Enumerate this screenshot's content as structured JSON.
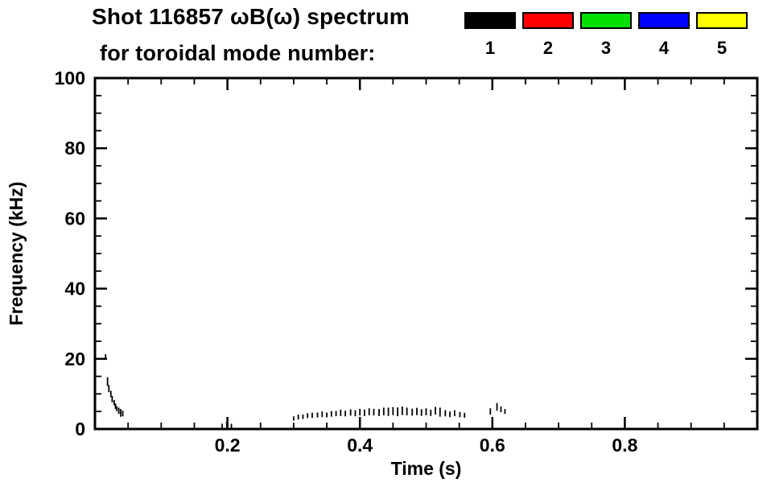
{
  "title": {
    "line1": "Shot 116857 ωB(ω) spectrum",
    "line2": "for toroidal mode number:"
  },
  "legend": {
    "entries": [
      {
        "label": "1",
        "color": "#000000"
      },
      {
        "label": "2",
        "color": "#ff0000"
      },
      {
        "label": "3",
        "color": "#00e000"
      },
      {
        "label": "4",
        "color": "#0000ff"
      },
      {
        "label": "5",
        "color": "#ffff00"
      }
    ]
  },
  "chart_data": {
    "type": "scatter",
    "title": "Shot 116857 ωB(ω) spectrum for toroidal mode number:",
    "xlabel": "Time (s)",
    "ylabel": "Frequency (kHz)",
    "xlim": [
      0.0,
      1.0
    ],
    "ylim": [
      0,
      100
    ],
    "xticks": [
      0.2,
      0.4,
      0.6,
      0.8
    ],
    "xtick_labels": [
      "0.2",
      "0.4",
      "0.6",
      "0.8"
    ],
    "yticks": [
      0,
      20,
      40,
      60,
      80,
      100
    ],
    "ytick_labels": [
      "0",
      "20",
      "40",
      "60",
      "80",
      "100"
    ],
    "xminor_step": 0.05,
    "yminor_step": 5,
    "grid": false,
    "legend_position": "top-right",
    "marker": "vertical-dash",
    "point_format": [
      "time_s",
      "frequency_khz",
      "dash_height_khz"
    ],
    "series": [
      {
        "name": "n=1",
        "color": "#000000",
        "points": [
          [
            0.016,
            20.5,
            1.6
          ],
          [
            0.019,
            13.5,
            2.5
          ],
          [
            0.021,
            11.5,
            2.0
          ],
          [
            0.024,
            10.0,
            1.8
          ],
          [
            0.026,
            8.5,
            1.8
          ],
          [
            0.029,
            7.5,
            1.5
          ],
          [
            0.031,
            6.5,
            1.5
          ],
          [
            0.033,
            5.8,
            1.4
          ],
          [
            0.036,
            5.2,
            1.8
          ],
          [
            0.039,
            4.6,
            2.2
          ],
          [
            0.042,
            4.4,
            1.6
          ],
          [
            0.192,
            0.9,
            1.2
          ],
          [
            0.199,
            1.3,
            1.6
          ],
          [
            0.206,
            0.9,
            1.2
          ],
          [
            0.3,
            3.0,
            1.2
          ],
          [
            0.307,
            3.4,
            1.4
          ],
          [
            0.314,
            3.5,
            1.3
          ],
          [
            0.321,
            3.8,
            1.4
          ],
          [
            0.328,
            3.9,
            1.5
          ],
          [
            0.336,
            4.0,
            1.4
          ],
          [
            0.343,
            4.2,
            1.6
          ],
          [
            0.35,
            4.0,
            1.4
          ],
          [
            0.357,
            4.3,
            1.6
          ],
          [
            0.364,
            4.4,
            1.5
          ],
          [
            0.371,
            4.6,
            1.8
          ],
          [
            0.378,
            4.4,
            1.6
          ],
          [
            0.386,
            4.7,
            1.8
          ],
          [
            0.393,
            4.5,
            1.7
          ],
          [
            0.4,
            4.8,
            1.9
          ],
          [
            0.407,
            4.6,
            1.8
          ],
          [
            0.414,
            4.9,
            2.0
          ],
          [
            0.421,
            4.8,
            1.9
          ],
          [
            0.429,
            4.7,
            2.0
          ],
          [
            0.436,
            5.0,
            2.2
          ],
          [
            0.443,
            4.9,
            2.4
          ],
          [
            0.45,
            5.1,
            2.3
          ],
          [
            0.457,
            4.9,
            2.5
          ],
          [
            0.464,
            5.2,
            2.4
          ],
          [
            0.471,
            5.0,
            2.2
          ],
          [
            0.479,
            4.8,
            2.0
          ],
          [
            0.486,
            5.0,
            2.1
          ],
          [
            0.493,
            4.7,
            1.9
          ],
          [
            0.5,
            4.9,
            2.0
          ],
          [
            0.507,
            4.6,
            1.8
          ],
          [
            0.514,
            5.2,
            2.2
          ],
          [
            0.521,
            4.8,
            2.6
          ],
          [
            0.529,
            4.5,
            1.8
          ],
          [
            0.536,
            4.2,
            1.6
          ],
          [
            0.543,
            4.5,
            1.7
          ],
          [
            0.551,
            4.1,
            1.5
          ],
          [
            0.558,
            3.9,
            1.4
          ],
          [
            0.597,
            5.0,
            1.8
          ],
          [
            0.607,
            6.3,
            2.2
          ],
          [
            0.613,
            5.6,
            1.6
          ],
          [
            0.619,
            5.0,
            1.4
          ]
        ]
      },
      {
        "name": "n=2",
        "color": "#ff0000",
        "points": []
      },
      {
        "name": "n=3",
        "color": "#00e000",
        "points": []
      },
      {
        "name": "n=4",
        "color": "#0000ff",
        "points": []
      },
      {
        "name": "n=5",
        "color": "#ffff00",
        "points": []
      }
    ]
  }
}
